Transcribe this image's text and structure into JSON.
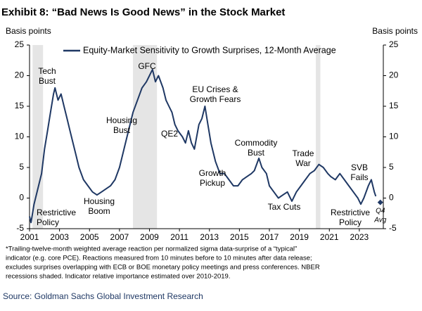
{
  "chart_data": {
    "type": "line",
    "title": "Exhibit 8: “Bad News Is Good News” in the Stock Market",
    "ylabel": "Basis points",
    "y2label": "Basis points",
    "xlim": [
      2001,
      2024.6
    ],
    "xticks": [
      2001,
      2003,
      2005,
      2007,
      2009,
      2011,
      2013,
      2015,
      2017,
      2019,
      2021,
      2023
    ],
    "ylim": [
      -5,
      25
    ],
    "yticks": [
      -5,
      0,
      5,
      10,
      15,
      20,
      25
    ],
    "y2lim": [
      -5,
      25
    ],
    "y2ticks": [
      -5,
      0,
      5,
      10,
      15,
      20,
      25
    ],
    "recessions": [
      [
        2001.2,
        2001.9
      ],
      [
        2007.9,
        2009.5
      ],
      [
        2020.1,
        2020.4
      ]
    ],
    "recession_color": "#e5e5e5",
    "series": [
      {
        "name": "Equity-Market Sensitivity to Growth Surprises, 12-Month Average",
        "color": "#1f3864",
        "x": [
          2001.0,
          2001.1,
          2001.3,
          2001.5,
          2001.8,
          2002.0,
          2002.2,
          2002.4,
          2002.6,
          2002.7,
          2002.9,
          2003.1,
          2003.3,
          2003.5,
          2003.7,
          2003.9,
          2004.1,
          2004.3,
          2004.6,
          2004.9,
          2005.2,
          2005.5,
          2005.8,
          2006.1,
          2006.4,
          2006.7,
          2007.0,
          2007.3,
          2007.6,
          2007.9,
          2008.2,
          2008.5,
          2008.8,
          2009.0,
          2009.2,
          2009.4,
          2009.6,
          2009.9,
          2010.1,
          2010.3,
          2010.5,
          2010.7,
          2010.9,
          2011.2,
          2011.4,
          2011.6,
          2011.8,
          2012.0,
          2012.3,
          2012.5,
          2012.7,
          2012.9,
          2013.1,
          2013.4,
          2013.7,
          2014.0,
          2014.3,
          2014.6,
          2014.9,
          2015.2,
          2015.5,
          2015.8,
          2016.0,
          2016.3,
          2016.5,
          2016.8,
          2017.0,
          2017.3,
          2017.6,
          2017.9,
          2018.2,
          2018.5,
          2018.8,
          2019.1,
          2019.4,
          2019.7,
          2020.0,
          2020.3,
          2020.6,
          2020.9,
          2021.1,
          2021.4,
          2021.7,
          2022.0,
          2022.3,
          2022.6,
          2022.9,
          2023.1,
          2023.3,
          2023.6,
          2023.8,
          2024.0,
          2024.1
        ],
        "values": [
          -3,
          -4,
          -1,
          1,
          4,
          8,
          11,
          14,
          17,
          18,
          16,
          17,
          15,
          13,
          11,
          9,
          7,
          5,
          3,
          2,
          1,
          0.5,
          1,
          1.5,
          2,
          3,
          5,
          8,
          11,
          14,
          16,
          18,
          19,
          20,
          21,
          19,
          20,
          18,
          16,
          15,
          14,
          12,
          11,
          10,
          9,
          11,
          9,
          8,
          12,
          13,
          15,
          12,
          9,
          6,
          4,
          4,
          3,
          2,
          2,
          3,
          3.5,
          4,
          4.5,
          6.5,
          5,
          4,
          2,
          1,
          0,
          0.5,
          1,
          -0.5,
          1,
          2,
          3,
          4,
          4.5,
          5.5,
          5,
          4,
          3.5,
          3,
          4,
          3,
          2,
          1,
          0,
          -1,
          0,
          2,
          3,
          1,
          0.3
        ]
      }
    ],
    "q4_avg": {
      "lines": [
        "Q4",
        "Avg"
      ],
      "x": 2024.4,
      "value": -0.7
    },
    "annotations": [
      {
        "lines": [
          "Tech",
          "Bust"
        ]
      },
      {
        "lines": [
          "Restrictive",
          "Policy"
        ]
      },
      {
        "lines": [
          "GFC"
        ]
      },
      {
        "lines": [
          "Housing",
          "Bust"
        ]
      },
      {
        "lines": [
          "Housing",
          "Boom"
        ]
      },
      {
        "lines": [
          "QE2"
        ]
      },
      {
        "lines": [
          "EU Crises &",
          "Growth Fears"
        ]
      },
      {
        "lines": [
          "Growth",
          "Pickup"
        ]
      },
      {
        "lines": [
          "Commodity",
          "Bust"
        ]
      },
      {
        "lines": [
          "Trade",
          "War"
        ]
      },
      {
        "lines": [
          "Tax Cuts"
        ]
      },
      {
        "lines": [
          "SVB",
          "Fails"
        ]
      },
      {
        "lines": [
          "Restrictive",
          "Policy"
        ]
      }
    ],
    "footnote": [
      "*Trailing-twelve-month  weighted average reaction per normalized  sigma data-surprise of a “typical”",
      "indicator (e.g. core PCE).  Reactions measured from 10 minutes before to 10 minutes  after data release;",
      "excludes surprises overlapping  with ECB or BOE monetary policy meetings and press conferences. NBER",
      "recessions shaded. Indicator relative importance estimated  over 2010-2019."
    ],
    "source": "Source: Goldman Sachs Global Investment Research"
  }
}
